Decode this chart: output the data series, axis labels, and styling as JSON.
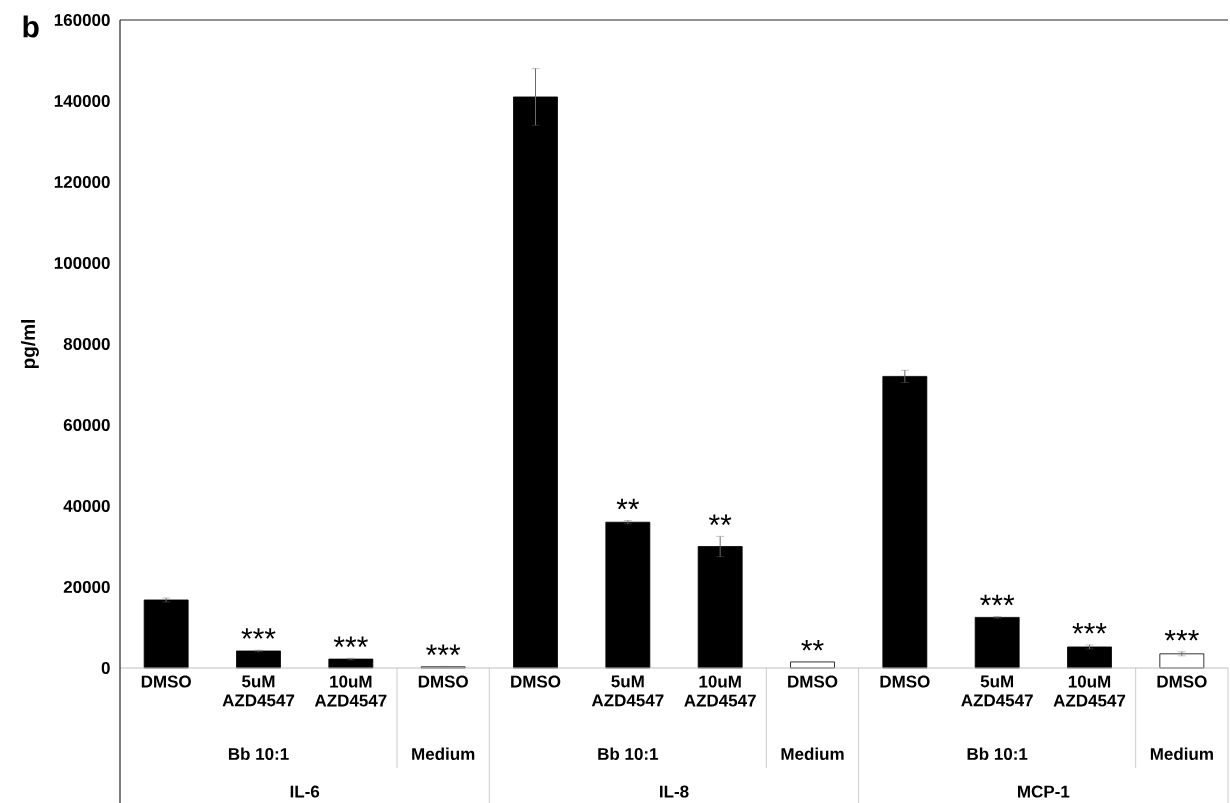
{
  "chart_data": {
    "type": "bar",
    "title": "b",
    "ylabel": "pg/ml",
    "categories": [
      "DMSO",
      "5uM AZD4547",
      "10uM AZD4547",
      "DMSO",
      "DMSO",
      "5uM AZD4547",
      "10uM AZD4547",
      "DMSO",
      "DMSO",
      "5uM AZD4547",
      "10uM AZD4547",
      "DMSO"
    ],
    "values": [
      16800,
      4200,
      2200,
      300,
      141000,
      36000,
      30000,
      1500,
      72000,
      12500,
      5200,
      3500
    ],
    "errors": [
      500,
      200,
      200,
      100,
      7000,
      400,
      2500,
      null,
      1500,
      200,
      500,
      500
    ],
    "colors": [
      "#000000",
      "#000000",
      "#000000",
      "#ffffff",
      "#000000",
      "#000000",
      "#000000",
      "#ffffff",
      "#000000",
      "#000000",
      "#000000",
      "#ffffff"
    ],
    "value_labels": [
      null,
      "***",
      "***",
      "***",
      null,
      "**",
      "**",
      "**",
      null,
      "***",
      "***",
      "***"
    ],
    "annotations": [
      "Bb 10:1",
      "Medium",
      "IL-6",
      "Bb 10:1",
      "Medium",
      "IL-8",
      "Bb 10:1",
      "Medium",
      "MCP-1"
    ],
    "ylim": [
      0,
      160000
    ],
    "yticks": [
      0,
      20000,
      40000,
      60000,
      80000,
      100000,
      120000,
      140000,
      160000
    ]
  }
}
